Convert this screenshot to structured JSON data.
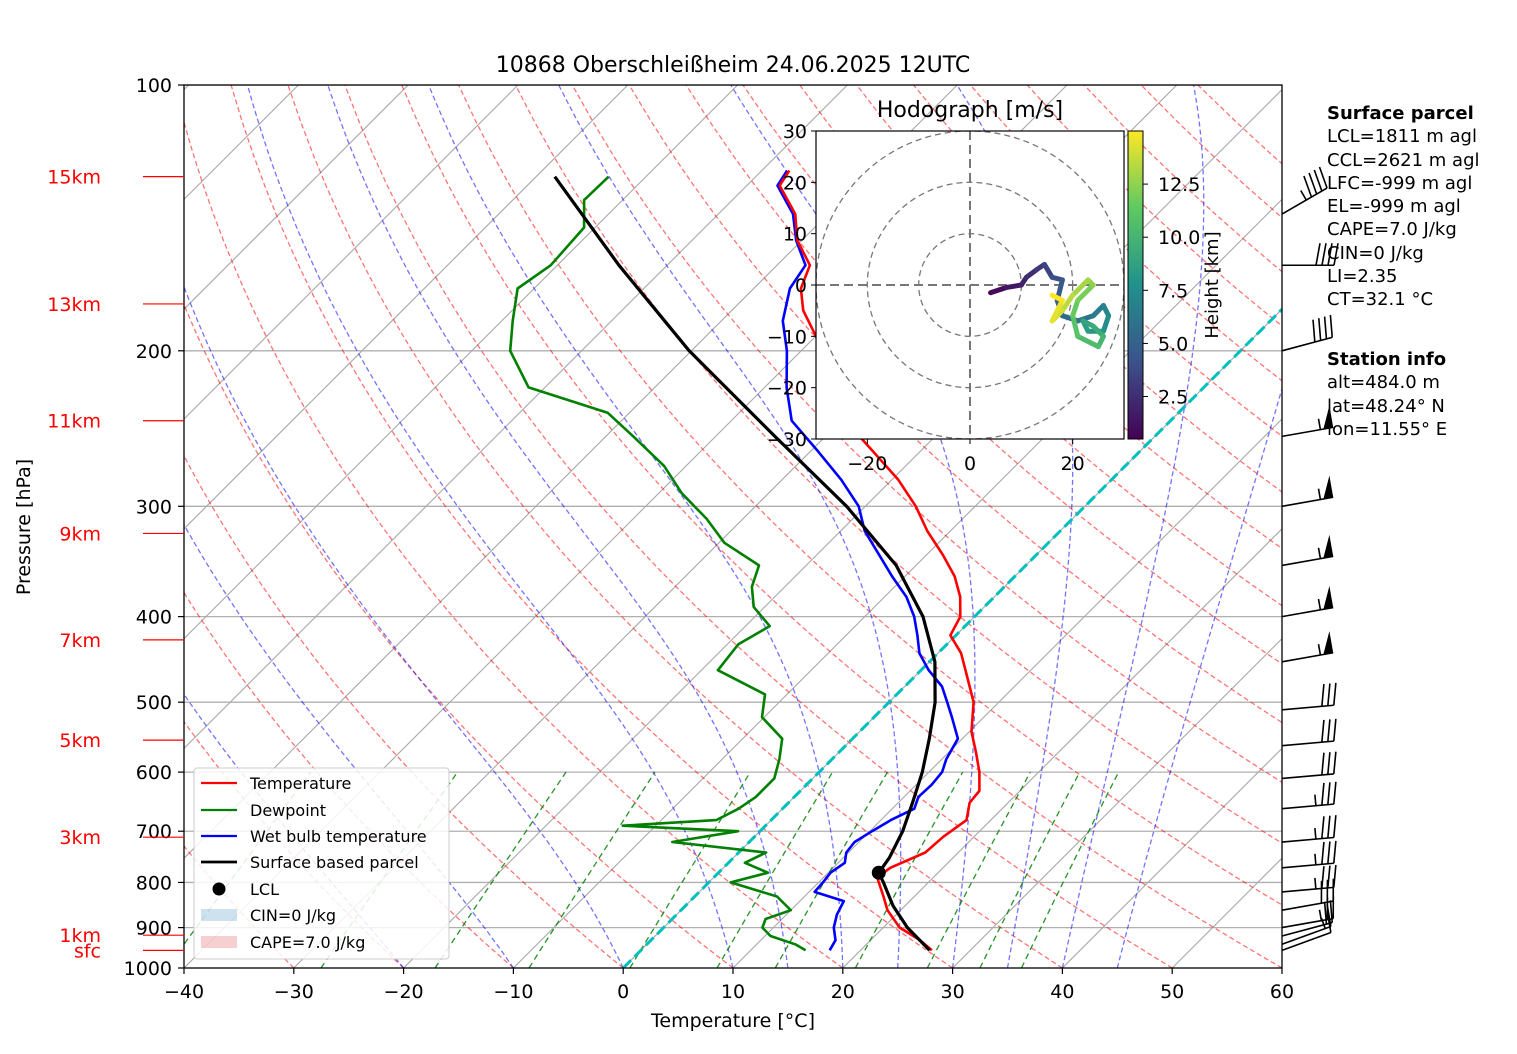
{
  "chart_data": {
    "type": "skew-t",
    "title": "10868 Oberschleißheim 24.06.2025 12UTC",
    "xlabel": "Temperature [°C]",
    "ylabel": "Pressure [hPa]",
    "xlim": [
      -40,
      60
    ],
    "ylim": [
      1000,
      100
    ],
    "x_ticks": [
      "−40",
      "−30",
      "−20",
      "−10",
      "0",
      "10",
      "20",
      "30",
      "40",
      "50",
      "60"
    ],
    "y_ticks": [
      "100",
      "200",
      "300",
      "400",
      "500",
      "600",
      "700",
      "800",
      "900",
      "1000"
    ],
    "height_markers": [
      {
        "label": "sfc",
        "p": 955
      },
      {
        "label": "1km",
        "p": 918
      },
      {
        "label": "3km",
        "p": 711
      },
      {
        "label": "5km",
        "p": 552
      },
      {
        "label": "7km",
        "p": 425
      },
      {
        "label": "9km",
        "p": 322
      },
      {
        "label": "11km",
        "p": 240
      },
      {
        "label": "13km",
        "p": 177
      },
      {
        "label": "15km",
        "p": 127
      }
    ],
    "series": [
      {
        "name": "Temperature",
        "color": "#ff0000",
        "points": [
          [
            955,
            26.5
          ],
          [
            930,
            24.5
          ],
          [
            900,
            21.5
          ],
          [
            860,
            18.8
          ],
          [
            830,
            17.2
          ],
          [
            790,
            14.9
          ],
          [
            770,
            15.2
          ],
          [
            740,
            17.0
          ],
          [
            710,
            17.2
          ],
          [
            680,
            17.8
          ],
          [
            650,
            16.5
          ],
          [
            630,
            16.3
          ],
          [
            600,
            14.6
          ],
          [
            570,
            12.5
          ],
          [
            540,
            10.2
          ],
          [
            500,
            7.7
          ],
          [
            470,
            5.0
          ],
          [
            440,
            2.1
          ],
          [
            420,
            -0.5
          ],
          [
            400,
            -1.3
          ],
          [
            380,
            -3.1
          ],
          [
            360,
            -5.5
          ],
          [
            340,
            -8.6
          ],
          [
            320,
            -12.1
          ],
          [
            300,
            -15.4
          ],
          [
            280,
            -19.4
          ],
          [
            260,
            -24.3
          ],
          [
            240,
            -29.6
          ],
          [
            220,
            -33.7
          ],
          [
            200,
            -38.0
          ],
          [
            180,
            -43.5
          ],
          [
            170,
            -45.7
          ],
          [
            160,
            -47.0
          ],
          [
            150,
            -50.4
          ],
          [
            140,
            -53.0
          ],
          [
            130,
            -57.0
          ],
          [
            125,
            -57.5
          ]
        ]
      },
      {
        "name": "Dewpoint",
        "color": "#008000",
        "points": [
          [
            955,
            15.0
          ],
          [
            940,
            13.5
          ],
          [
            920,
            10.5
          ],
          [
            900,
            9.0
          ],
          [
            880,
            8.5
          ],
          [
            860,
            10.0
          ],
          [
            830,
            7.5
          ],
          [
            800,
            2.0
          ],
          [
            780,
            4.5
          ],
          [
            760,
            1.5
          ],
          [
            740,
            2.5
          ],
          [
            720,
            -7.0
          ],
          [
            700,
            -2.0
          ],
          [
            690,
            -13.0
          ],
          [
            680,
            -5.0
          ],
          [
            660,
            -4.0
          ],
          [
            640,
            -3.5
          ],
          [
            610,
            -3.5
          ],
          [
            580,
            -4.8
          ],
          [
            550,
            -6.4
          ],
          [
            520,
            -10.2
          ],
          [
            490,
            -12.0
          ],
          [
            460,
            -18.5
          ],
          [
            430,
            -19.0
          ],
          [
            410,
            -17.8
          ],
          [
            390,
            -21.0
          ],
          [
            370,
            -23.0
          ],
          [
            350,
            -24.3
          ],
          [
            330,
            -29.5
          ],
          [
            310,
            -33.3
          ],
          [
            290,
            -37.9
          ],
          [
            270,
            -42.0
          ],
          [
            250,
            -47.5
          ],
          [
            235,
            -52.0
          ],
          [
            220,
            -61.5
          ],
          [
            200,
            -66.5
          ],
          [
            185,
            -69.0
          ],
          [
            170,
            -71.5
          ],
          [
            160,
            -70.6
          ],
          [
            145,
            -71.0
          ],
          [
            135,
            -73.5
          ],
          [
            127,
            -73.4
          ]
        ]
      },
      {
        "name": "Wet bulb temperature",
        "color": "#0000ff",
        "points": [
          [
            955,
            17.2
          ],
          [
            930,
            16.8
          ],
          [
            900,
            15.5
          ],
          [
            870,
            14.6
          ],
          [
            840,
            14.0
          ],
          [
            820,
            10.5
          ],
          [
            800,
            10.4
          ],
          [
            780,
            10.2
          ],
          [
            760,
            10.6
          ],
          [
            740,
            9.8
          ],
          [
            720,
            9.6
          ],
          [
            700,
            10.2
          ],
          [
            680,
            10.9
          ],
          [
            660,
            12.0
          ],
          [
            640,
            11.3
          ],
          [
            620,
            11.4
          ],
          [
            600,
            11.2
          ],
          [
            580,
            10.4
          ],
          [
            550,
            9.6
          ],
          [
            520,
            7.1
          ],
          [
            500,
            5.3
          ],
          [
            480,
            3.4
          ],
          [
            460,
            0.7
          ],
          [
            440,
            -1.7
          ],
          [
            420,
            -3.5
          ],
          [
            400,
            -5.5
          ],
          [
            380,
            -8.0
          ],
          [
            360,
            -11.2
          ],
          [
            340,
            -14.4
          ],
          [
            320,
            -17.8
          ],
          [
            300,
            -20.6
          ],
          [
            280,
            -24.6
          ],
          [
            260,
            -29.3
          ],
          [
            240,
            -34.5
          ],
          [
            220,
            -38.0
          ],
          [
            200,
            -41.3
          ],
          [
            185,
            -44.4
          ],
          [
            170,
            -46.7
          ],
          [
            160,
            -47.4
          ],
          [
            150,
            -50.5
          ],
          [
            140,
            -53.2
          ],
          [
            130,
            -57.2
          ],
          [
            125,
            -57.7
          ]
        ]
      },
      {
        "name": "Surface based parcel",
        "color": "#000000",
        "points": [
          [
            955,
            26.3
          ],
          [
            900,
            22.2
          ],
          [
            850,
            18.9
          ],
          [
            800,
            15.9
          ],
          [
            780,
            14.6
          ],
          [
            750,
            14.2
          ],
          [
            700,
            13.0
          ],
          [
            650,
            11.3
          ],
          [
            600,
            9.4
          ],
          [
            550,
            7.0
          ],
          [
            500,
            4.2
          ],
          [
            450,
            0.5
          ],
          [
            400,
            -4.7
          ],
          [
            350,
            -11.8
          ],
          [
            300,
            -21.7
          ],
          [
            250,
            -34.6
          ],
          [
            200,
            -50.2
          ],
          [
            160,
            -64.4
          ],
          [
            127,
            -78.3
          ]
        ]
      }
    ],
    "lcl": {
      "p": 780,
      "t": 14.6
    },
    "legend": {
      "position": "lower-left",
      "entries": [
        "Temperature",
        "Dewpoint",
        "Wet bulb temperature",
        "Surface based parcel",
        "LCL",
        "CIN=0 J/kg",
        "CAPE=7.0 J/kg"
      ]
    },
    "isotherm_0c_color": "#00bfbf",
    "dry_adiabat_color": "#ff0000",
    "moist_adiabat_color": "#0000ff",
    "mixing_ratio_color": "#008000",
    "wind_barbs": [
      {
        "p": 955,
        "spd_kt": 10,
        "dir": 250
      },
      {
        "p": 940,
        "spd_kt": 15,
        "dir": 250
      },
      {
        "p": 920,
        "spd_kt": 20,
        "dir": 255
      },
      {
        "p": 900,
        "spd_kt": 25,
        "dir": 260
      },
      {
        "p": 860,
        "spd_kt": 30,
        "dir": 260
      },
      {
        "p": 820,
        "spd_kt": 35,
        "dir": 265
      },
      {
        "p": 770,
        "spd_kt": 35,
        "dir": 265
      },
      {
        "p": 720,
        "spd_kt": 35,
        "dir": 265
      },
      {
        "p": 660,
        "spd_kt": 35,
        "dir": 265
      },
      {
        "p": 610,
        "spd_kt": 30,
        "dir": 265
      },
      {
        "p": 560,
        "spd_kt": 30,
        "dir": 265
      },
      {
        "p": 510,
        "spd_kt": 30,
        "dir": 265
      },
      {
        "p": 450,
        "spd_kt": 55,
        "dir": 260
      },
      {
        "p": 400,
        "spd_kt": 55,
        "dir": 260
      },
      {
        "p": 350,
        "spd_kt": 55,
        "dir": 260
      },
      {
        "p": 300,
        "spd_kt": 55,
        "dir": 260
      },
      {
        "p": 250,
        "spd_kt": 55,
        "dir": 260
      },
      {
        "p": 200,
        "spd_kt": 40,
        "dir": 255
      },
      {
        "p": 160,
        "spd_kt": 40,
        "dir": 270
      },
      {
        "p": 140,
        "spd_kt": 45,
        "dir": 240
      }
    ],
    "hodograph": {
      "title": "Hodograph [m/s]",
      "xlim": [
        -30,
        30
      ],
      "ylim": [
        -30,
        30
      ],
      "x_ticks": [
        "−20",
        "0",
        "20"
      ],
      "y_ticks": [
        "30",
        "20",
        "10",
        "0",
        "−10",
        "−20",
        "−30"
      ],
      "rings": [
        10,
        20,
        30
      ],
      "colorbar_label": "Height [km]",
      "colorbar_ticks": [
        "2.5",
        "5.0",
        "7.5",
        "10.0",
        "12.5"
      ],
      "colorbar_range": [
        0.5,
        15
      ],
      "points": [
        {
          "u": 4,
          "v": -1.5,
          "z": 0.5
        },
        {
          "u": 7,
          "v": -0.5,
          "z": 1.0
        },
        {
          "u": 10,
          "v": 0,
          "z": 1.5
        },
        {
          "u": 11,
          "v": 1.5,
          "z": 2.0
        },
        {
          "u": 13,
          "v": 3,
          "z": 2.5
        },
        {
          "u": 14.5,
          "v": 4,
          "z": 3.0
        },
        {
          "u": 16,
          "v": 1.5,
          "z": 3.5
        },
        {
          "u": 18,
          "v": 1,
          "z": 4.0
        },
        {
          "u": 17,
          "v": -3,
          "z": 4.5
        },
        {
          "u": 18,
          "v": -6,
          "z": 5.0
        },
        {
          "u": 21,
          "v": -7,
          "z": 5.5
        },
        {
          "u": 24,
          "v": -6,
          "z": 6.0
        },
        {
          "u": 26,
          "v": -4,
          "z": 6.5
        },
        {
          "u": 27,
          "v": -6,
          "z": 7.0
        },
        {
          "u": 26,
          "v": -9,
          "z": 7.5
        },
        {
          "u": 23,
          "v": -9,
          "z": 8.0
        },
        {
          "u": 22,
          "v": -7,
          "z": 8.5
        },
        {
          "u": 24,
          "v": -8,
          "z": 9.0
        },
        {
          "u": 26,
          "v": -10,
          "z": 9.5
        },
        {
          "u": 25,
          "v": -12,
          "z": 10.0
        },
        {
          "u": 21,
          "v": -10,
          "z": 10.5
        },
        {
          "u": 20,
          "v": -6,
          "z": 11.0
        },
        {
          "u": 21,
          "v": -3,
          "z": 11.5
        },
        {
          "u": 24,
          "v": 0,
          "z": 12.0
        },
        {
          "u": 23,
          "v": 1,
          "z": 12.5
        },
        {
          "u": 20,
          "v": -2,
          "z": 13.0
        },
        {
          "u": 18,
          "v": -5,
          "z": 13.5
        },
        {
          "u": 16,
          "v": -7,
          "z": 14.0
        },
        {
          "u": 18,
          "v": -3,
          "z": 14.5
        },
        {
          "u": 16,
          "v": -2,
          "z": 15.0
        }
      ]
    }
  },
  "surface_parcel": {
    "title": "Surface parcel",
    "lines": [
      "LCL=1811 m agl",
      "CCL=2621 m agl",
      "LFC=-999 m agl",
      "EL=-999 m agl",
      "CAPE=7.0 J/kg",
      "CIN=0 J/kg",
      "LI=2.35",
      "CT=32.1 °C"
    ]
  },
  "station_info": {
    "title": "Station info",
    "lines": [
      "alt=484.0 m",
      "lat=48.24° N",
      "lon=11.55° E"
    ]
  }
}
